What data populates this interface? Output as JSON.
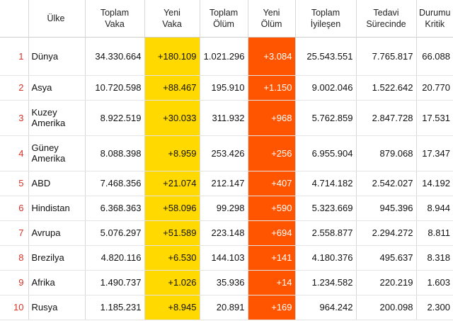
{
  "header": {
    "country": "Ülke",
    "total_cases": [
      "Toplam",
      "Vaka"
    ],
    "new_cases": [
      "Yeni",
      "Vaka"
    ],
    "total_deaths": [
      "Toplam",
      "Ölüm"
    ],
    "new_deaths": [
      "Yeni",
      "Ölüm"
    ],
    "total_recovered": [
      "Toplam",
      "İyileşen"
    ],
    "active": [
      "Tedavi",
      "Sürecinde"
    ],
    "critical": [
      "Durumu",
      "Kritik"
    ]
  },
  "rows": [
    {
      "rank": "1",
      "country": "Dünya",
      "cases": "34.330.664",
      "new_cases": "+180.109",
      "deaths": "1.021.296",
      "new_deaths": "+3.084",
      "recovered": "25.543.551",
      "active": "7.765.817",
      "critical": "66.088"
    },
    {
      "rank": "2",
      "country": "Asya",
      "cases": "10.720.598",
      "new_cases": "+88.467",
      "deaths": "195.910",
      "new_deaths": "+1.150",
      "recovered": "9.002.046",
      "active": "1.522.642",
      "critical": "20.770"
    },
    {
      "rank": "3",
      "country": "Kuzey Amerika",
      "cases": "8.922.519",
      "new_cases": "+30.033",
      "deaths": "311.932",
      "new_deaths": "+968",
      "recovered": "5.762.859",
      "active": "2.847.728",
      "critical": "17.531"
    },
    {
      "rank": "4",
      "country": "Güney Amerika",
      "cases": "8.088.398",
      "new_cases": "+8.959",
      "deaths": "253.426",
      "new_deaths": "+256",
      "recovered": "6.955.904",
      "active": "879.068",
      "critical": "17.347"
    },
    {
      "rank": "5",
      "country": "ABD",
      "cases": "7.468.356",
      "new_cases": "+21.074",
      "deaths": "212.147",
      "new_deaths": "+407",
      "recovered": "4.714.182",
      "active": "2.542.027",
      "critical": "14.192"
    },
    {
      "rank": "6",
      "country": "Hindistan",
      "cases": "6.368.363",
      "new_cases": "+58.096",
      "deaths": "99.298",
      "new_deaths": "+590",
      "recovered": "5.323.669",
      "active": "945.396",
      "critical": "8.944"
    },
    {
      "rank": "7",
      "country": "Avrupa",
      "cases": "5.076.297",
      "new_cases": "+51.589",
      "deaths": "223.148",
      "new_deaths": "+694",
      "recovered": "2.558.877",
      "active": "2.294.272",
      "critical": "8.811"
    },
    {
      "rank": "8",
      "country": "Brezilya",
      "cases": "4.820.116",
      "new_cases": "+6.530",
      "deaths": "144.103",
      "new_deaths": "+141",
      "recovered": "4.180.376",
      "active": "495.637",
      "critical": "8.318"
    },
    {
      "rank": "9",
      "country": "Afrika",
      "cases": "1.490.737",
      "new_cases": "+1.026",
      "deaths": "35.936",
      "new_deaths": "+14",
      "recovered": "1.234.582",
      "active": "220.219",
      "critical": "1.603"
    },
    {
      "rank": "10",
      "country": "Rusya",
      "cases": "1.185.231",
      "new_cases": "+8.945",
      "deaths": "20.891",
      "new_deaths": "+169",
      "recovered": "964.242",
      "active": "200.098",
      "critical": "2.300"
    }
  ],
  "colors": {
    "new_cases_bg": "#ffd900",
    "new_deaths_bg": "#ff5500",
    "rank_text": "#d93025"
  }
}
